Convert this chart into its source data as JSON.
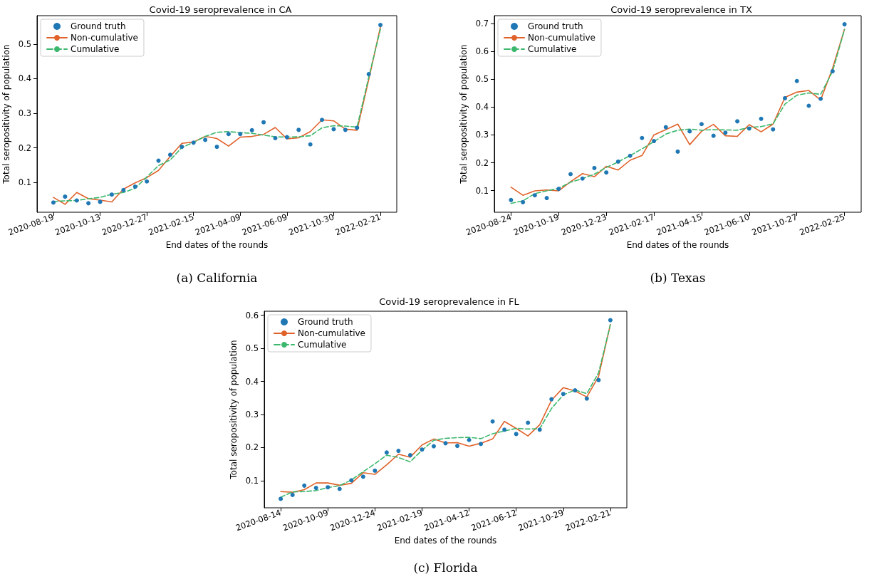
{
  "chart_data": [
    {
      "type": "line",
      "title": "Covid-19 seroprevalence in CA",
      "xlabel": "End dates of the rounds",
      "ylabel": "Total seropositivity of population",
      "annotations": [
        "(a) California"
      ],
      "legend": "top left",
      "grid": false,
      "categories": [
        "2020-08-19",
        null,
        null,
        null,
        "2020-10-13",
        null,
        null,
        null,
        "2020-12-27",
        null,
        null,
        null,
        "2021-02-15",
        null,
        null,
        null,
        "2021-04-09",
        null,
        null,
        null,
        "2021-06-09",
        null,
        null,
        null,
        "2021-10-30",
        null,
        null,
        null,
        "2022-02-21"
      ],
      "ylim": [
        0.014,
        0.582
      ],
      "yticks": [
        0.1,
        0.2,
        0.3,
        0.4,
        0.5
      ],
      "series": [
        {
          "name": "Ground truth",
          "type": "scatter",
          "marker": "circle",
          "color": "#1f77b4",
          "values": [
            0.042,
            0.059,
            0.048,
            0.04,
            0.044,
            0.065,
            0.078,
            0.088,
            0.103,
            0.163,
            0.18,
            0.203,
            0.215,
            0.223,
            0.203,
            0.24,
            0.24,
            0.251,
            0.274,
            0.228,
            0.231,
            0.252,
            0.21,
            0.281,
            0.254,
            0.252,
            0.258,
            0.413,
            0.555
          ]
        },
        {
          "name": "Non-cumulative",
          "type": "line",
          "line_style": "solid",
          "color": "#e0622a",
          "values": [
            0.057,
            0.037,
            0.071,
            0.053,
            0.049,
            0.044,
            0.081,
            0.099,
            0.114,
            0.135,
            0.175,
            0.213,
            0.217,
            0.233,
            0.227,
            0.205,
            0.231,
            0.233,
            0.239,
            0.259,
            0.226,
            0.229,
            0.247,
            0.281,
            0.278,
            0.254,
            0.251,
            0.397,
            0.549
          ]
        },
        {
          "name": "Cumulative",
          "type": "line",
          "line_style": "dashed",
          "color": "#3cb86e",
          "values": [
            0.045,
            0.047,
            0.048,
            0.053,
            0.057,
            0.066,
            0.071,
            0.083,
            0.116,
            0.149,
            0.165,
            0.201,
            0.216,
            0.233,
            0.245,
            0.247,
            0.244,
            0.242,
            0.237,
            0.232,
            0.231,
            0.232,
            0.235,
            0.258,
            0.264,
            0.263,
            0.26,
            0.404,
            0.543
          ]
        }
      ]
    },
    {
      "type": "line",
      "title": "Covid-19 seroprevalence in TX",
      "xlabel": "End dates of the rounds",
      "ylabel": "Total seropositivity of population",
      "annotations": [
        "(b) Texas"
      ],
      "legend": "top left",
      "grid": false,
      "categories": [
        "2020-08-24",
        null,
        null,
        null,
        "2020-10-19",
        null,
        null,
        null,
        "2020-12-23",
        null,
        null,
        null,
        "2021-02-17",
        null,
        null,
        null,
        "2021-04-15",
        null,
        null,
        null,
        "2021-06-10",
        null,
        null,
        null,
        "2021-10-27",
        null,
        null,
        null,
        "2022-02-25"
      ],
      "ylim": [
        0.022,
        0.729
      ],
      "yticks": [
        0.1,
        0.2,
        0.3,
        0.4,
        0.5,
        0.6,
        0.7
      ],
      "series": [
        {
          "name": "Ground truth",
          "type": "scatter",
          "marker": "circle",
          "color": "#1f77b4",
          "values": [
            0.066,
            0.058,
            0.083,
            0.073,
            0.106,
            0.159,
            0.143,
            0.181,
            0.165,
            0.204,
            0.225,
            0.289,
            0.278,
            0.328,
            0.24,
            0.313,
            0.339,
            0.297,
            0.308,
            0.349,
            0.323,
            0.358,
            0.32,
            0.432,
            0.494,
            0.405,
            0.43,
            0.529,
            0.698
          ]
        },
        {
          "name": "Non-cumulative",
          "type": "line",
          "line_style": "solid",
          "color": "#e0622a",
          "values": [
            0.112,
            0.083,
            0.099,
            0.102,
            0.099,
            0.132,
            0.161,
            0.15,
            0.187,
            0.174,
            0.209,
            0.226,
            0.3,
            0.319,
            0.339,
            0.265,
            0.313,
            0.338,
            0.297,
            0.295,
            0.337,
            0.311,
            0.339,
            0.435,
            0.454,
            0.46,
            0.426,
            0.54,
            0.68
          ]
        },
        {
          "name": "Cumulative",
          "type": "line",
          "line_style": "dashed",
          "color": "#3cb86e",
          "values": [
            0.054,
            0.063,
            0.089,
            0.099,
            0.108,
            0.13,
            0.143,
            0.159,
            0.183,
            0.203,
            0.226,
            0.25,
            0.276,
            0.303,
            0.317,
            0.321,
            0.317,
            0.319,
            0.318,
            0.317,
            0.327,
            0.33,
            0.34,
            0.411,
            0.443,
            0.451,
            0.446,
            0.529,
            0.679
          ]
        }
      ]
    },
    {
      "type": "line",
      "title": "Covid-19 seroprevalence in FL",
      "xlabel": "End dates of the rounds",
      "ylabel": "Total seropositivity of population",
      "annotations": [
        "(c) Florida"
      ],
      "legend": "top left",
      "grid": false,
      "categories": [
        "2020-08-14",
        null,
        null,
        null,
        "2020-10-09",
        null,
        null,
        null,
        "2020-12-24",
        null,
        null,
        null,
        "2021-02-19",
        null,
        null,
        null,
        "2021-04-12",
        null,
        null,
        null,
        "2021-06-12",
        null,
        null,
        null,
        "2021-10-29",
        null,
        null,
        null,
        "2022-02-21"
      ],
      "ylim": [
        0.018,
        0.612
      ],
      "yticks": [
        0.1,
        0.2,
        0.3,
        0.4,
        0.5,
        0.6
      ],
      "series": [
        {
          "name": "Ground truth",
          "type": "scatter",
          "marker": "circle",
          "color": "#1f77b4",
          "values": [
            0.045,
            0.057,
            0.085,
            0.078,
            0.08,
            0.075,
            0.101,
            0.112,
            0.13,
            0.185,
            0.19,
            0.177,
            0.194,
            0.204,
            0.213,
            0.205,
            0.223,
            0.211,
            0.279,
            0.254,
            0.241,
            0.275,
            0.254,
            0.346,
            0.362,
            0.373,
            0.348,
            0.404,
            0.585
          ]
        },
        {
          "name": "Non-cumulative",
          "type": "line",
          "line_style": "solid",
          "color": "#e0622a",
          "values": [
            0.067,
            0.065,
            0.073,
            0.093,
            0.093,
            0.086,
            0.092,
            0.124,
            0.119,
            0.148,
            0.18,
            0.171,
            0.208,
            0.226,
            0.214,
            0.215,
            0.204,
            0.213,
            0.226,
            0.279,
            0.258,
            0.235,
            0.269,
            0.343,
            0.381,
            0.371,
            0.353,
            0.415,
            0.572
          ]
        },
        {
          "name": "Cumulative",
          "type": "line",
          "line_style": "dashed",
          "color": "#3cb86e",
          "values": [
            0.05,
            0.066,
            0.067,
            0.07,
            0.079,
            0.085,
            0.102,
            0.127,
            0.151,
            0.177,
            0.17,
            0.157,
            0.192,
            0.222,
            0.228,
            0.23,
            0.231,
            0.227,
            0.242,
            0.25,
            0.258,
            0.256,
            0.257,
            0.318,
            0.359,
            0.374,
            0.363,
            0.426,
            0.571
          ]
        }
      ]
    }
  ]
}
